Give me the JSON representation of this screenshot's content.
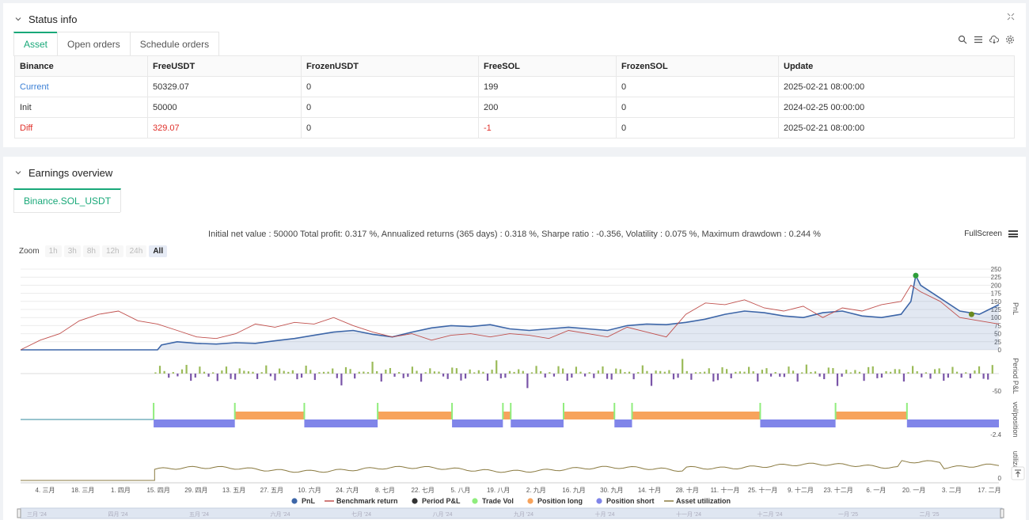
{
  "status": {
    "title": "Status info",
    "tabs": [
      "Asset",
      "Open orders",
      "Schedule orders"
    ],
    "table": {
      "headers": [
        "Binance",
        "FreeUSDT",
        "FrozenUSDT",
        "FreeSOL",
        "FrozenSOL",
        "Update"
      ],
      "rows": [
        [
          "Current",
          "50329.07",
          "0",
          "199",
          "0",
          "2025-02-21 08:00:00"
        ],
        [
          "Init",
          "50000",
          "0",
          "200",
          "0",
          "2024-02-25 00:00:00"
        ],
        [
          "Diff",
          "329.07",
          "0",
          "-1",
          "0",
          "2025-02-21 08:00:00"
        ]
      ]
    }
  },
  "earnings": {
    "title": "Earnings overview",
    "tab": "Binance.SOL_USDT",
    "summary": "Initial net value : 50000 Total profit: 0.317 %, Annualized returns (365 days) : 0.318 %, Sharpe ratio : -0.356, Volatility : 0.075 %, Maximum drawdown : 0.244 %",
    "fullscreen": "FullScreen",
    "zoom_label": "Zoom",
    "zoom_buttons": [
      "1h",
      "3h",
      "8h",
      "12h",
      "24h",
      "All"
    ],
    "colors": {
      "pnl": "#3d66a8",
      "benchmark": "#c0504d",
      "period_pos": "#9bbb59",
      "period_neg": "#7a55a8",
      "trade_vol": "#90ed7d",
      "pos_long": "#f7a35c",
      "pos_short": "#8085e9",
      "utilization": "#8a7a40",
      "accent": "#19a879"
    }
  },
  "chart_data": {
    "type": "line",
    "panes": [
      {
        "name": "PnL",
        "ticks": [
          "250",
          "225",
          "200",
          "175",
          "150",
          "125",
          "100",
          "75",
          "50",
          "25",
          "0"
        ]
      },
      {
        "name": "Period P&L",
        "ticks": [
          "-50"
        ]
      },
      {
        "name": "vol/position",
        "ticks": [
          "-2.4"
        ]
      },
      {
        "name": "utiliza...",
        "ticks": [
          "0"
        ]
      }
    ],
    "x_ticks": [
      "4. 三月",
      "18. 三月",
      "1. 四月",
      "15. 四月",
      "29. 四月",
      "13. 五月",
      "27. 五月",
      "10. 六月",
      "24. 六月",
      "8. 七月",
      "22. 七月",
      "5. 八月",
      "19. 八月",
      "2. 九月",
      "16. 九月",
      "30. 九月",
      "14. 十月",
      "28. 十月",
      "11. 十一月",
      "25. 十一月",
      "9. 十二月",
      "23. 十二月",
      "6. 一月",
      "20. 一月",
      "3. 二月",
      "17. 二月"
    ],
    "navigator_labels": [
      "三月 '24",
      "四月 '24",
      "五月 '24",
      "六月 '24",
      "七月 '24",
      "八月 '24",
      "九月 '24",
      "十月 '24",
      "十一月 '24",
      "十二月 '24",
      "一月 '25",
      "二月 '25"
    ],
    "legend": [
      "PnL",
      "Benchmark return",
      "Period P&L",
      "Trade Vol",
      "Position long",
      "Position short",
      "Asset utilization"
    ],
    "pnl_series": [
      [
        0,
        0
      ],
      [
        0.06,
        0
      ],
      [
        0.14,
        0
      ],
      [
        0.144,
        15
      ],
      [
        0.16,
        25
      ],
      [
        0.18,
        20
      ],
      [
        0.2,
        18
      ],
      [
        0.22,
        22
      ],
      [
        0.24,
        20
      ],
      [
        0.26,
        28
      ],
      [
        0.28,
        35
      ],
      [
        0.3,
        45
      ],
      [
        0.32,
        55
      ],
      [
        0.34,
        60
      ],
      [
        0.36,
        48
      ],
      [
        0.38,
        40
      ],
      [
        0.4,
        55
      ],
      [
        0.42,
        68
      ],
      [
        0.44,
        75
      ],
      [
        0.46,
        72
      ],
      [
        0.48,
        78
      ],
      [
        0.5,
        65
      ],
      [
        0.52,
        60
      ],
      [
        0.54,
        65
      ],
      [
        0.56,
        70
      ],
      [
        0.58,
        65
      ],
      [
        0.6,
        60
      ],
      [
        0.62,
        75
      ],
      [
        0.64,
        80
      ],
      [
        0.66,
        78
      ],
      [
        0.68,
        85
      ],
      [
        0.7,
        95
      ],
      [
        0.72,
        110
      ],
      [
        0.74,
        120
      ],
      [
        0.76,
        115
      ],
      [
        0.78,
        105
      ],
      [
        0.8,
        100
      ],
      [
        0.82,
        115
      ],
      [
        0.84,
        120
      ],
      [
        0.86,
        105
      ],
      [
        0.88,
        100
      ],
      [
        0.9,
        110
      ],
      [
        0.91,
        150
      ],
      [
        0.915,
        230
      ],
      [
        0.92,
        200
      ],
      [
        0.94,
        160
      ],
      [
        0.96,
        120
      ],
      [
        0.98,
        110
      ],
      [
        1,
        140
      ]
    ],
    "benchmark_series": [
      [
        0,
        0
      ],
      [
        0.02,
        30
      ],
      [
        0.04,
        50
      ],
      [
        0.06,
        90
      ],
      [
        0.08,
        110
      ],
      [
        0.1,
        120
      ],
      [
        0.12,
        90
      ],
      [
        0.14,
        80
      ],
      [
        0.16,
        60
      ],
      [
        0.18,
        40
      ],
      [
        0.2,
        35
      ],
      [
        0.22,
        50
      ],
      [
        0.24,
        80
      ],
      [
        0.26,
        70
      ],
      [
        0.28,
        85
      ],
      [
        0.3,
        80
      ],
      [
        0.32,
        100
      ],
      [
        0.34,
        75
      ],
      [
        0.36,
        55
      ],
      [
        0.38,
        40
      ],
      [
        0.4,
        50
      ],
      [
        0.42,
        30
      ],
      [
        0.44,
        45
      ],
      [
        0.46,
        50
      ],
      [
        0.48,
        40
      ],
      [
        0.5,
        50
      ],
      [
        0.52,
        45
      ],
      [
        0.54,
        35
      ],
      [
        0.56,
        60
      ],
      [
        0.58,
        50
      ],
      [
        0.6,
        40
      ],
      [
        0.62,
        70
      ],
      [
        0.64,
        55
      ],
      [
        0.66,
        40
      ],
      [
        0.68,
        110
      ],
      [
        0.7,
        145
      ],
      [
        0.72,
        140
      ],
      [
        0.74,
        155
      ],
      [
        0.76,
        130
      ],
      [
        0.78,
        120
      ],
      [
        0.8,
        135
      ],
      [
        0.82,
        100
      ],
      [
        0.84,
        130
      ],
      [
        0.86,
        120
      ],
      [
        0.88,
        140
      ],
      [
        0.9,
        150
      ],
      [
        0.91,
        200
      ],
      [
        0.92,
        180
      ],
      [
        0.94,
        150
      ],
      [
        0.96,
        100
      ],
      [
        0.98,
        90
      ],
      [
        1,
        80
      ]
    ],
    "position_segments": [
      {
        "side": "short",
        "from": 0.136,
        "to": 0.219
      },
      {
        "side": "long",
        "from": 0.219,
        "to": 0.29
      },
      {
        "side": "short",
        "from": 0.29,
        "to": 0.365
      },
      {
        "side": "long",
        "from": 0.365,
        "to": 0.441
      },
      {
        "side": "short",
        "from": 0.441,
        "to": 0.493
      },
      {
        "side": "long",
        "from": 0.493,
        "to": 0.501
      },
      {
        "side": "short",
        "from": 0.501,
        "to": 0.555
      },
      {
        "side": "long",
        "from": 0.555,
        "to": 0.607
      },
      {
        "side": "short",
        "from": 0.607,
        "to": 0.625
      },
      {
        "side": "long",
        "from": 0.625,
        "to": 0.756
      },
      {
        "side": "short",
        "from": 0.756,
        "to": 0.833
      },
      {
        "side": "long",
        "from": 0.833,
        "to": 0.906
      },
      {
        "side": "short",
        "from": 0.906,
        "to": 1
      }
    ]
  }
}
